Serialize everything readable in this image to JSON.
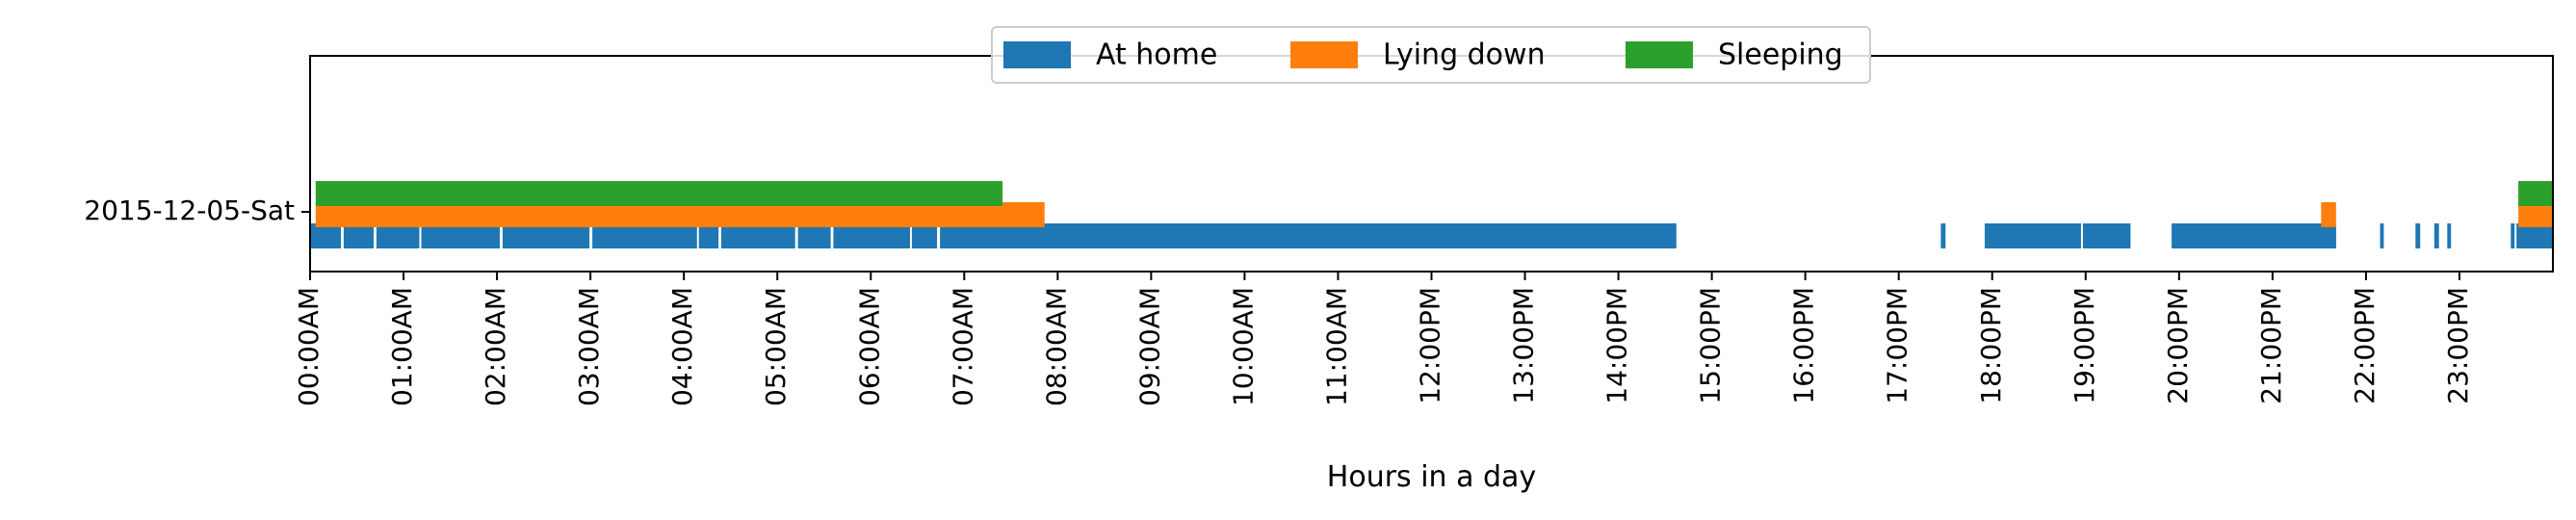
{
  "chart_data": {
    "type": "timeline",
    "xlabel": "Hours in a day",
    "row_label": "2015-12-05-Sat",
    "x_unit": "hours",
    "xlim": [
      0,
      24
    ],
    "x_ticks": [
      {
        "value": 0,
        "label": "00:00AM"
      },
      {
        "value": 1,
        "label": "01:00AM"
      },
      {
        "value": 2,
        "label": "02:00AM"
      },
      {
        "value": 3,
        "label": "03:00AM"
      },
      {
        "value": 4,
        "label": "04:00AM"
      },
      {
        "value": 5,
        "label": "05:00AM"
      },
      {
        "value": 6,
        "label": "06:00AM"
      },
      {
        "value": 7,
        "label": "07:00AM"
      },
      {
        "value": 8,
        "label": "08:00AM"
      },
      {
        "value": 9,
        "label": "09:00AM"
      },
      {
        "value": 10,
        "label": "10:00AM"
      },
      {
        "value": 11,
        "label": "11:00AM"
      },
      {
        "value": 12,
        "label": "12:00PM"
      },
      {
        "value": 13,
        "label": "13:00PM"
      },
      {
        "value": 14,
        "label": "14:00PM"
      },
      {
        "value": 15,
        "label": "15:00PM"
      },
      {
        "value": 16,
        "label": "16:00PM"
      },
      {
        "value": 17,
        "label": "17:00PM"
      },
      {
        "value": 18,
        "label": "18:00PM"
      },
      {
        "value": 19,
        "label": "19:00PM"
      },
      {
        "value": 20,
        "label": "20:00PM"
      },
      {
        "value": 21,
        "label": "21:00PM"
      },
      {
        "value": 22,
        "label": "22:00PM"
      },
      {
        "value": 23,
        "label": "23:00PM"
      }
    ],
    "legend_position": "top-center",
    "series": [
      {
        "name": "At home",
        "color": "#1f77b4",
        "intervals": [
          [
            0.0,
            0.33
          ],
          [
            0.36,
            0.68
          ],
          [
            0.71,
            1.17
          ],
          [
            1.19,
            2.03
          ],
          [
            2.06,
            2.99
          ],
          [
            3.02,
            4.14
          ],
          [
            4.16,
            4.37
          ],
          [
            4.4,
            5.19
          ],
          [
            5.22,
            5.57
          ],
          [
            5.6,
            6.42
          ],
          [
            6.44,
            6.71
          ],
          [
            6.74,
            14.62
          ],
          [
            17.45,
            17.5
          ],
          [
            17.92,
            18.95
          ],
          [
            18.97,
            19.48
          ],
          [
            19.92,
            21.68
          ],
          [
            22.15,
            22.19
          ],
          [
            22.53,
            22.58
          ],
          [
            22.73,
            22.78
          ],
          [
            22.87,
            22.91
          ],
          [
            23.55,
            23.59
          ],
          [
            23.61,
            24.0
          ]
        ]
      },
      {
        "name": "Lying down",
        "color": "#ff7f0e",
        "intervals": [
          [
            0.06,
            7.86
          ],
          [
            21.52,
            21.68
          ],
          [
            23.63,
            24.0
          ]
        ]
      },
      {
        "name": "Sleeping",
        "color": "#2ca02c",
        "intervals": [
          [
            0.06,
            7.41
          ],
          [
            23.63,
            24.0
          ]
        ]
      }
    ]
  }
}
